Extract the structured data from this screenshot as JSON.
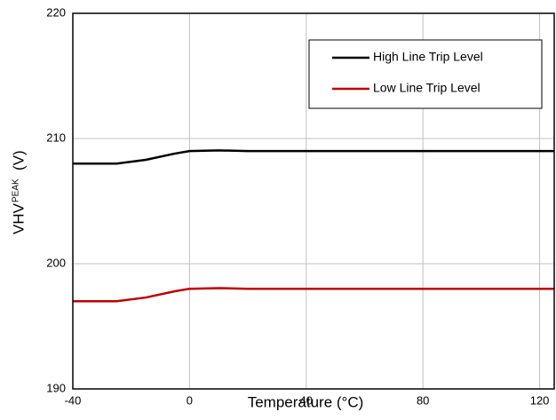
{
  "chart_data": {
    "type": "line",
    "x_label": "Temperature (°C)",
    "y_label": {
      "main": "VHV",
      "sub": "PEAK",
      "unit": "(V)"
    },
    "x": [
      -40,
      -25,
      -15,
      -5,
      0,
      10,
      20,
      125
    ],
    "series": [
      {
        "name": "High Line Trip Level",
        "color": "#000000",
        "values": [
          208,
          208,
          208.3,
          208.8,
          209,
          209.05,
          209,
          209
        ]
      },
      {
        "name": "Low Line Trip Level",
        "color": "#c00000",
        "values": [
          197,
          197,
          197.3,
          197.8,
          198,
          198.05,
          198,
          198
        ]
      }
    ],
    "xlim": [
      -40,
      125
    ],
    "xticks": [
      -40,
      0,
      40,
      80,
      120
    ],
    "ylim": [
      190,
      220
    ],
    "yticks": [
      190,
      200,
      210,
      220
    ],
    "grid": true,
    "legend": "upper right"
  }
}
